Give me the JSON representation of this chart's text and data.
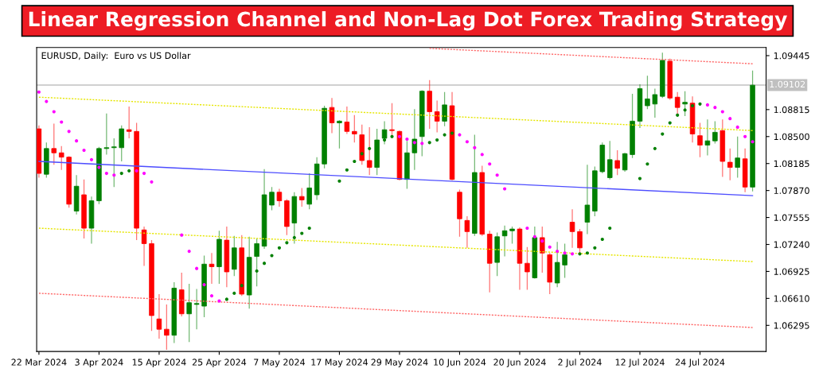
{
  "chart_data": {
    "type": "candlestick",
    "title": "Linear Regression Channel and Non-Lag Dot Forex Trading Strategy",
    "subtitle": "EURUSD, Daily:  Euro vs US Dollar",
    "categories": [
      "22 Mar 2024",
      null,
      null,
      null,
      null,
      null,
      null,
      null,
      "3 Apr 2024",
      null,
      null,
      null,
      null,
      null,
      null,
      null,
      "15 Apr 2024",
      null,
      null,
      null,
      null,
      null,
      null,
      null,
      "25 Apr 2024",
      null,
      null,
      null,
      null,
      null,
      null,
      null,
      "7 May 2024",
      null,
      null,
      null,
      null,
      null,
      null,
      null,
      "17 May 2024",
      null,
      null,
      null,
      null,
      null,
      null,
      null,
      "29 May 2024",
      null,
      null,
      null,
      null,
      null,
      null,
      null,
      "10 Jun 2024",
      null,
      null,
      null,
      null,
      null,
      null,
      null,
      "20 Jun 2024",
      null,
      null,
      null,
      null,
      null,
      null,
      null,
      "2 Jul 2024",
      null,
      null,
      null,
      null,
      null,
      null,
      null,
      "12 Jul 2024",
      null,
      null,
      null,
      null,
      null,
      null,
      null,
      "24 Jul 2024",
      null,
      null,
      null,
      null,
      null,
      null,
      null
    ],
    "ohlc": [
      [
        1.0859,
        1.0863,
        1.0802,
        1.0807
      ],
      [
        1.0806,
        1.0843,
        1.0802,
        1.0836
      ],
      [
        1.0836,
        1.0865,
        1.0817,
        1.0831
      ],
      [
        1.0831,
        1.0839,
        1.0811,
        1.0826
      ],
      [
        1.0826,
        1.0827,
        1.0767,
        1.0771
      ],
      [
        1.0763,
        1.0805,
        1.0759,
        1.0792
      ],
      [
        1.0782,
        1.08,
        1.0731,
        1.0743
      ],
      [
        1.0743,
        1.078,
        1.0725,
        1.0775
      ],
      [
        1.0775,
        1.0838,
        1.0771,
        1.0836
      ],
      [
        1.0836,
        1.0877,
        1.0829,
        1.0837
      ],
      [
        1.0837,
        1.0848,
        1.0791,
        1.0838
      ],
      [
        1.0837,
        1.0863,
        1.0821,
        1.0859
      ],
      [
        1.0858,
        1.0885,
        1.0848,
        1.0856
      ],
      [
        1.0856,
        1.0866,
        1.0729,
        1.0743
      ],
      [
        1.0741,
        1.0745,
        1.0699,
        1.0725
      ],
      [
        1.0725,
        1.0729,
        1.0623,
        1.0641
      ],
      [
        1.0637,
        1.0666,
        1.0614,
        1.0625
      ],
      [
        1.0625,
        1.0654,
        1.0601,
        1.0618
      ],
      [
        1.0618,
        1.068,
        1.0609,
        1.0673
      ],
      [
        1.0671,
        1.0691,
        1.064,
        1.0643
      ],
      [
        1.0643,
        1.0678,
        1.061,
        1.0656
      ],
      [
        1.0654,
        1.0672,
        1.0625,
        1.0655
      ],
      [
        1.0652,
        1.0711,
        1.0639,
        1.0701
      ],
      [
        1.0701,
        1.0714,
        1.0678,
        1.0698
      ],
      [
        1.0698,
        1.074,
        1.0678,
        1.073
      ],
      [
        1.0729,
        1.0745,
        1.0674,
        1.0692
      ],
      [
        1.0695,
        1.0734,
        1.0687,
        1.072
      ],
      [
        1.072,
        1.0735,
        1.0664,
        1.0666
      ],
      [
        1.0665,
        1.0733,
        1.0649,
        1.0709
      ],
      [
        1.071,
        1.0731,
        1.0675,
        1.0725
      ],
      [
        1.0722,
        1.0812,
        1.0719,
        1.0782
      ],
      [
        1.077,
        1.0791,
        1.0764,
        1.0785
      ],
      [
        1.0785,
        1.0789,
        1.0768,
        1.0775
      ],
      [
        1.0775,
        1.0777,
        1.0735,
        1.0745
      ],
      [
        1.0749,
        1.0785,
        1.0725,
        1.078
      ],
      [
        1.078,
        1.079,
        1.0768,
        1.0776
      ],
      [
        1.0771,
        1.0807,
        1.0765,
        1.079
      ],
      [
        1.0782,
        1.0826,
        1.0776,
        1.0818
      ],
      [
        1.0818,
        1.0886,
        1.0813,
        1.0883
      ],
      [
        1.0884,
        1.0895,
        1.0854,
        1.0866
      ],
      [
        1.0866,
        1.0869,
        1.0836,
        1.0868
      ],
      [
        1.0867,
        1.0885,
        1.0853,
        1.0856
      ],
      [
        1.0856,
        1.0875,
        1.0843,
        1.0853
      ],
      [
        1.0852,
        1.0864,
        1.0817,
        1.0822
      ],
      [
        1.0822,
        1.0861,
        1.0805,
        1.0814
      ],
      [
        1.0814,
        1.0859,
        1.0805,
        1.0846
      ],
      [
        1.0848,
        1.0868,
        1.0841,
        1.0858
      ],
      [
        1.0858,
        1.0889,
        1.085,
        1.0857
      ],
      [
        1.0856,
        1.0857,
        1.0799,
        1.08
      ],
      [
        1.08,
        1.0845,
        1.0789,
        1.0831
      ],
      [
        1.0831,
        1.0882,
        1.0811,
        1.0847
      ],
      [
        1.085,
        1.0904,
        1.0827,
        1.0903
      ],
      [
        1.0903,
        1.0916,
        1.0859,
        1.0879
      ],
      [
        1.0879,
        1.0892,
        1.0855,
        1.0868
      ],
      [
        1.0868,
        1.0902,
        1.0862,
        1.0887
      ],
      [
        1.0886,
        1.0902,
        1.0799,
        1.08
      ],
      [
        1.0785,
        1.0788,
        1.0733,
        1.0754
      ],
      [
        1.0752,
        1.0757,
        1.072,
        1.0739
      ],
      [
        1.0737,
        1.0852,
        1.0734,
        1.0808
      ],
      [
        1.0808,
        1.0816,
        1.0734,
        1.0736
      ],
      [
        1.0736,
        1.074,
        1.0668,
        1.0702
      ],
      [
        1.0703,
        1.0738,
        1.0687,
        1.0733
      ],
      [
        1.0734,
        1.0746,
        1.071,
        1.074
      ],
      [
        1.074,
        1.0745,
        1.0725,
        1.0742
      ],
      [
        1.0742,
        1.0744,
        1.0671,
        1.0702
      ],
      [
        1.0702,
        1.0721,
        1.0671,
        1.0692
      ],
      [
        1.0685,
        1.0745,
        1.0684,
        1.0732
      ],
      [
        1.0732,
        1.0745,
        1.0691,
        1.0714
      ],
      [
        1.0712,
        1.0714,
        1.0666,
        1.068
      ],
      [
        1.0679,
        1.0727,
        1.0674,
        1.0703
      ],
      [
        1.07,
        1.0725,
        1.0685,
        1.0712
      ],
      [
        1.075,
        1.0765,
        1.072,
        1.0739
      ],
      [
        1.0739,
        1.0742,
        1.0712,
        1.072
      ],
      [
        1.075,
        1.0817,
        1.0736,
        1.077
      ],
      [
        1.0763,
        1.0815,
        1.0757,
        1.081
      ],
      [
        1.0809,
        1.0843,
        1.0807,
        1.084
      ],
      [
        1.0802,
        1.0845,
        1.08,
        1.0823
      ],
      [
        1.0822,
        1.0834,
        1.0805,
        1.0813
      ],
      [
        1.0811,
        1.0831,
        1.0809,
        1.083
      ],
      [
        1.0829,
        1.09,
        1.0825,
        1.0868
      ],
      [
        1.0868,
        1.0911,
        1.086,
        1.0906
      ],
      [
        1.0886,
        1.0921,
        1.0882,
        1.0894
      ],
      [
        1.0888,
        1.0906,
        1.0872,
        1.0899
      ],
      [
        1.0897,
        1.0948,
        1.0895,
        1.0939
      ],
      [
        1.0938,
        1.0941,
        1.0893,
        1.0895
      ],
      [
        1.0896,
        1.0902,
        1.0876,
        1.0884
      ],
      [
        1.0888,
        1.0903,
        1.0874,
        1.089
      ],
      [
        1.0889,
        1.0897,
        1.0843,
        1.0853
      ],
      [
        1.0851,
        1.0866,
        1.0826,
        1.084
      ],
      [
        1.084,
        1.087,
        1.0828,
        1.0845
      ],
      [
        1.0845,
        1.0868,
        1.0842,
        1.0855
      ],
      [
        1.0857,
        1.087,
        1.0803,
        1.0821
      ],
      [
        1.082,
        1.0836,
        1.0799,
        1.0814
      ],
      [
        1.0814,
        1.085,
        1.0802,
        1.0825
      ],
      [
        1.0824,
        1.0836,
        1.0785,
        1.0791
      ],
      [
        1.0791,
        1.0927,
        1.0786,
        1.091
      ]
    ],
    "colors": [
      "#ff0000",
      "#008000",
      "#ff0000",
      "#ff0000",
      "#ff0000",
      "#008000",
      "#ff0000",
      "#008000",
      "#008000",
      "#008000",
      "#008000",
      "#008000",
      "#ff0000",
      "#ff0000",
      "#ff0000",
      "#ff0000",
      "#ff0000",
      "#ff0000",
      "#008000",
      "#ff0000",
      "#008000",
      "#008000",
      "#008000",
      "#ff0000",
      "#008000",
      "#ff0000",
      "#008000",
      "#ff0000",
      "#008000",
      "#008000",
      "#008000",
      "#008000",
      "#ff0000",
      "#ff0000",
      "#008000",
      "#ff0000",
      "#008000",
      "#008000",
      "#008000",
      "#ff0000",
      "#008000",
      "#ff0000",
      "#ff0000",
      "#ff0000",
      "#ff0000",
      "#008000",
      "#008000",
      "#ff0000",
      "#ff0000",
      "#008000",
      "#008000",
      "#008000",
      "#ff0000",
      "#ff0000",
      "#008000",
      "#ff0000",
      "#ff0000",
      "#ff0000",
      "#008000",
      "#ff0000",
      "#ff0000",
      "#008000",
      "#008000",
      "#008000",
      "#ff0000",
      "#ff0000",
      "#008000",
      "#ff0000",
      "#ff0000",
      "#008000",
      "#008000",
      "#ff0000",
      "#ff0000",
      "#008000",
      "#008000",
      "#008000",
      "#008000",
      "#ff0000",
      "#008000",
      "#008000",
      "#008000",
      "#008000",
      "#008000",
      "#008000",
      "#ff0000",
      "#ff0000",
      "#008000",
      "#ff0000",
      "#ff0000",
      "#008000",
      "#008000",
      "#ff0000",
      "#ff0000",
      "#008000",
      "#ff0000",
      "#008000"
    ],
    "series": [
      {
        "type": "line",
        "color": "#4d4dff",
        "line_style": "solid",
        "values": [
          1.0821,
          null,
          null,
          null,
          null,
          null,
          null,
          null,
          null,
          null,
          null,
          null,
          null,
          null,
          null,
          null,
          null,
          null,
          null,
          null,
          null,
          null,
          null,
          null,
          null,
          null,
          null,
          null,
          null,
          null,
          null,
          null,
          null,
          null,
          null,
          null,
          null,
          null,
          null,
          null,
          null,
          null,
          null,
          null,
          null,
          null,
          null,
          null,
          null,
          null,
          null,
          null,
          null,
          null,
          null,
          null,
          null,
          null,
          null,
          null,
          null,
          null,
          null,
          null,
          null,
          null,
          null,
          null,
          null,
          null,
          null,
          null,
          null,
          null,
          null,
          null,
          null,
          null,
          null,
          null,
          null,
          null,
          null,
          null,
          null,
          null,
          null,
          null,
          null,
          null,
          null,
          null,
          null,
          null,
          null,
          1.0781
        ]
      },
      {
        "type": "line",
        "color": "#e6e600",
        "line_style": "dotted",
        "values": [
          1.0896,
          null,
          null,
          null,
          null,
          null,
          null,
          null,
          null,
          null,
          null,
          null,
          null,
          null,
          null,
          null,
          null,
          null,
          null,
          null,
          null,
          null,
          null,
          null,
          null,
          null,
          null,
          null,
          null,
          null,
          null,
          null,
          null,
          null,
          null,
          null,
          null,
          null,
          null,
          null,
          null,
          null,
          null,
          null,
          null,
          null,
          null,
          null,
          null,
          null,
          null,
          null,
          null,
          null,
          null,
          null,
          null,
          null,
          null,
          null,
          null,
          null,
          null,
          null,
          null,
          null,
          null,
          null,
          null,
          null,
          null,
          null,
          null,
          null,
          null,
          null,
          null,
          null,
          null,
          null,
          null,
          null,
          null,
          null,
          null,
          null,
          null,
          null,
          null,
          null,
          null,
          null,
          null,
          null,
          null,
          1.0857
        ]
      },
      {
        "type": "line",
        "color": "#e6e600",
        "line_style": "dotted",
        "values": [
          1.0743,
          null,
          null,
          null,
          null,
          null,
          null,
          null,
          null,
          null,
          null,
          null,
          null,
          null,
          null,
          null,
          null,
          null,
          null,
          null,
          null,
          null,
          null,
          null,
          null,
          null,
          null,
          null,
          null,
          null,
          null,
          null,
          null,
          null,
          null,
          null,
          null,
          null,
          null,
          null,
          null,
          null,
          null,
          null,
          null,
          null,
          null,
          null,
          null,
          null,
          null,
          null,
          null,
          null,
          null,
          null,
          null,
          null,
          null,
          null,
          null,
          null,
          null,
          null,
          null,
          null,
          null,
          null,
          null,
          null,
          null,
          null,
          null,
          null,
          null,
          null,
          null,
          null,
          null,
          null,
          null,
          null,
          null,
          null,
          null,
          null,
          null,
          null,
          null,
          null,
          null,
          null,
          null,
          null,
          null,
          1.0704
        ]
      },
      {
        "type": "line",
        "color": "#ff6666",
        "line_style": "dotted",
        "values": [
          null,
          null,
          null,
          null,
          null,
          null,
          null,
          null,
          null,
          null,
          null,
          null,
          null,
          null,
          null,
          null,
          null,
          null,
          null,
          null,
          null,
          null,
          null,
          null,
          null,
          null,
          null,
          null,
          null,
          null,
          null,
          null,
          null,
          null,
          null,
          null,
          null,
          null,
          null,
          null,
          null,
          null,
          null,
          null,
          null,
          null,
          null,
          null,
          null,
          null,
          null,
          null,
          1.0953,
          null,
          null,
          null,
          null,
          null,
          null,
          null,
          null,
          null,
          null,
          null,
          null,
          null,
          null,
          null,
          null,
          null,
          null,
          null,
          null,
          null,
          null,
          null,
          null,
          null,
          null,
          null,
          null,
          null,
          null,
          null,
          null,
          null,
          null,
          null,
          null,
          null,
          null,
          null,
          null,
          null,
          null,
          1.0935
        ]
      },
      {
        "type": "line",
        "color": "#ff6666",
        "line_style": "dotted",
        "values": [
          1.0667,
          null,
          null,
          null,
          null,
          null,
          null,
          null,
          null,
          null,
          null,
          null,
          null,
          null,
          null,
          null,
          null,
          null,
          null,
          null,
          null,
          null,
          null,
          null,
          null,
          null,
          null,
          null,
          null,
          null,
          null,
          null,
          null,
          null,
          null,
          null,
          null,
          null,
          null,
          null,
          null,
          null,
          null,
          null,
          null,
          null,
          null,
          null,
          null,
          null,
          null,
          null,
          null,
          null,
          null,
          null,
          null,
          null,
          null,
          null,
          null,
          null,
          null,
          null,
          null,
          null,
          null,
          null,
          null,
          null,
          null,
          null,
          null,
          null,
          null,
          null,
          null,
          null,
          null,
          null,
          null,
          null,
          null,
          null,
          null,
          null,
          null,
          null,
          null,
          null,
          null,
          null,
          null,
          null,
          null,
          1.0627
        ]
      },
      {
        "type": "scatter",
        "color": "#ff00ff",
        "values": [
          1.0902,
          1.0891,
          1.0879,
          1.0867,
          1.0856,
          1.0845,
          1.0834,
          1.0823,
          1.0814,
          1.0807,
          1.0805,
          null,
          null,
          1.081,
          1.0807,
          1.0797,
          null,
          null,
          null,
          1.0735,
          1.0716,
          1.0696,
          1.0677,
          1.0664,
          1.0658,
          null,
          null,
          null,
          null,
          null,
          null,
          null,
          null,
          null,
          null,
          null,
          null,
          null,
          null,
          null,
          null,
          null,
          null,
          null,
          null,
          null,
          null,
          null,
          1.085,
          1.0847,
          1.0843,
          1.0842,
          null,
          null,
          null,
          null,
          1.0852,
          1.0844,
          1.0837,
          1.0829,
          1.0818,
          1.0805,
          1.0789,
          null,
          null,
          1.0743,
          1.0733,
          1.0728,
          1.0721,
          1.0716,
          1.0714,
          1.0713,
          null,
          null,
          null,
          null,
          null,
          null,
          null,
          null,
          null,
          null,
          null,
          null,
          null,
          null,
          null,
          null,
          null,
          1.0887,
          1.0884,
          1.0879,
          1.0871,
          1.0861,
          1.085,
          1.0844
        ]
      },
      {
        "type": "scatter",
        "color": "#008000",
        "values": [
          null,
          null,
          null,
          null,
          null,
          null,
          null,
          null,
          null,
          null,
          null,
          1.0807,
          1.081,
          null,
          null,
          null,
          null,
          null,
          null,
          null,
          null,
          null,
          null,
          null,
          null,
          1.066,
          1.0667,
          1.0676,
          null,
          1.0693,
          1.0702,
          1.0711,
          1.072,
          1.0726,
          1.0732,
          1.0737,
          1.0743,
          null,
          null,
          null,
          1.0798,
          1.0811,
          1.0821,
          1.083,
          1.0836,
          null,
          1.0846,
          1.085,
          null,
          null,
          null,
          null,
          1.0843,
          1.0846,
          1.0852,
          1.0854,
          null,
          null,
          null,
          null,
          null,
          null,
          null,
          null,
          null,
          null,
          null,
          null,
          null,
          null,
          null,
          null,
          1.0713,
          1.0714,
          1.072,
          1.073,
          1.0743,
          null,
          null,
          null,
          1.0801,
          1.0818,
          1.0836,
          1.0853,
          1.0866,
          1.0875,
          1.0881,
          1.0886,
          1.0888,
          null,
          null,
          null,
          null,
          null,
          null,
          null
        ]
      }
    ],
    "ref_lines": [
      {
        "axis": "y",
        "value": 1.09102,
        "label": "1.09102",
        "color": "#c0c0c0"
      }
    ],
    "ylim": [
      1.0599,
      1.0954
    ],
    "yticks": [
      {
        "value": 1.06295,
        "label": "1.06295"
      },
      {
        "value": 1.0661,
        "label": "1.06610"
      },
      {
        "value": 1.06925,
        "label": "1.06925"
      },
      {
        "value": 1.0724,
        "label": "1.07240"
      },
      {
        "value": 1.07555,
        "label": "1.07555"
      },
      {
        "value": 1.0787,
        "label": "1.07870"
      },
      {
        "value": 1.08185,
        "label": "1.08185"
      },
      {
        "value": 1.085,
        "label": "1.08500"
      },
      {
        "value": 1.08815,
        "label": "1.08815"
      },
      {
        "value": 1.09445,
        "label": "1.09445"
      }
    ]
  }
}
